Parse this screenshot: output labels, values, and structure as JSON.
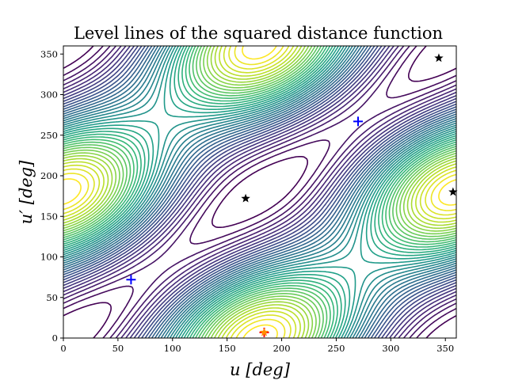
{
  "chart_data": {
    "type": "contour",
    "title": "Level lines of the squared distance function",
    "xlabel": "u [deg]",
    "ylabel": "u′ [deg]",
    "xlim": [
      0,
      360
    ],
    "ylim": [
      0,
      360
    ],
    "xticks": [
      0,
      50,
      100,
      150,
      200,
      250,
      300,
      350
    ],
    "yticks": [
      0,
      50,
      100,
      150,
      200,
      250,
      300,
      350
    ],
    "colormap": "viridis",
    "contour_levels": 40,
    "contour_model": {
      "A": 1.0,
      "B": 0.15,
      "C": 0.35,
      "beta": 10,
      "description_note": ""
    },
    "markers": [
      {
        "type": "star",
        "x": 167,
        "y": 172,
        "color": "#000000"
      },
      {
        "type": "star",
        "x": 344,
        "y": 345,
        "color": "#000000"
      },
      {
        "type": "star",
        "x": 357,
        "y": 180,
        "color": "#000000"
      },
      {
        "type": "plus",
        "x": 62,
        "y": 72,
        "color": "#0000ff"
      },
      {
        "type": "plus",
        "x": 270,
        "y": 267,
        "color": "#0000ff"
      },
      {
        "type": "plus",
        "x": 184,
        "y": 7,
        "color": "#ff0000"
      },
      {
        "type": "star",
        "x": 184,
        "y": 7,
        "color": "#ff8c00"
      }
    ]
  }
}
